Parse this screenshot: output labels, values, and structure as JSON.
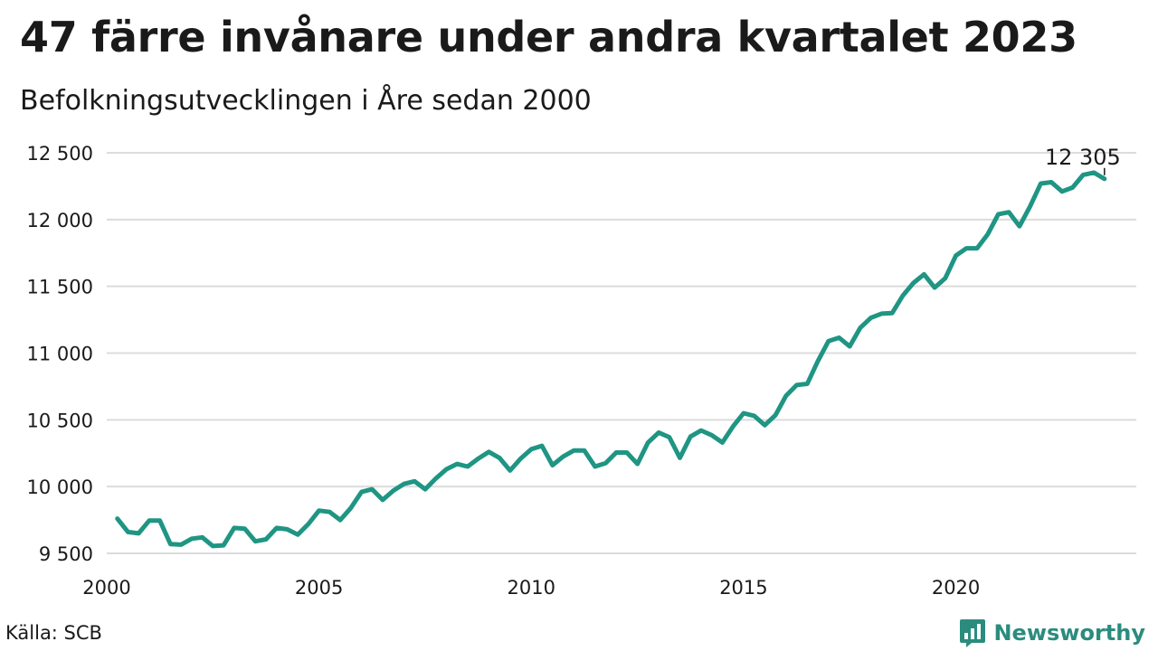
{
  "title": "47 färre invånare under andra kvartalet 2023",
  "subtitle": "Befolkningsutvecklingen i Åre sedan 2000",
  "source": "Källa: SCB",
  "brand": {
    "name": "Newsworthy",
    "color": "#2b8c7e"
  },
  "chart_data": {
    "type": "line",
    "line_color": "#1f9583",
    "grid": true,
    "ylim": [
      9500,
      12500
    ],
    "yticks": [
      9500,
      10000,
      10500,
      11000,
      11500,
      12000,
      12500
    ],
    "ytick_labels": [
      "9 500",
      "10 000",
      "10 500",
      "11 000",
      "11 500",
      "12 000",
      "12 500"
    ],
    "xticks": [
      2000,
      2005,
      2010,
      2015,
      2020
    ],
    "xtick_labels": [
      "2000",
      "2005",
      "2010",
      "2015",
      "2020"
    ],
    "xlim": [
      2000,
      2024.25
    ],
    "end_label": "12 305",
    "series": [
      {
        "values": [
          [
            2000.25,
            9760
          ],
          [
            2000.5,
            9660
          ],
          [
            2000.75,
            9650
          ],
          [
            2001,
            9745
          ],
          [
            2001.25,
            9745
          ],
          [
            2001.5,
            9570
          ],
          [
            2001.75,
            9565
          ],
          [
            2002,
            9610
          ],
          [
            2002.25,
            9620
          ],
          [
            2002.5,
            9555
          ],
          [
            2002.75,
            9560
          ],
          [
            2003,
            9690
          ],
          [
            2003.25,
            9685
          ],
          [
            2003.5,
            9590
          ],
          [
            2003.75,
            9605
          ],
          [
            2004,
            9690
          ],
          [
            2004.25,
            9680
          ],
          [
            2004.5,
            9640
          ],
          [
            2004.75,
            9720
          ],
          [
            2005,
            9820
          ],
          [
            2005.25,
            9810
          ],
          [
            2005.5,
            9750
          ],
          [
            2005.75,
            9840
          ],
          [
            2006,
            9960
          ],
          [
            2006.25,
            9980
          ],
          [
            2006.5,
            9900
          ],
          [
            2006.75,
            9970
          ],
          [
            2007,
            10020
          ],
          [
            2007.25,
            10040
          ],
          [
            2007.5,
            9980
          ],
          [
            2007.75,
            10060
          ],
          [
            2008,
            10130
          ],
          [
            2008.25,
            10170
          ],
          [
            2008.5,
            10150
          ],
          [
            2008.75,
            10210
          ],
          [
            2009,
            10260
          ],
          [
            2009.25,
            10215
          ],
          [
            2009.5,
            10120
          ],
          [
            2009.75,
            10210
          ],
          [
            2010,
            10280
          ],
          [
            2010.25,
            10305
          ],
          [
            2010.5,
            10160
          ],
          [
            2010.75,
            10225
          ],
          [
            2011,
            10270
          ],
          [
            2011.25,
            10270
          ],
          [
            2011.5,
            10150
          ],
          [
            2011.75,
            10175
          ],
          [
            2012,
            10255
          ],
          [
            2012.25,
            10255
          ],
          [
            2012.5,
            10170
          ],
          [
            2012.75,
            10330
          ],
          [
            2013,
            10405
          ],
          [
            2013.25,
            10370
          ],
          [
            2013.5,
            10215
          ],
          [
            2013.75,
            10375
          ],
          [
            2014,
            10420
          ],
          [
            2014.25,
            10385
          ],
          [
            2014.5,
            10330
          ],
          [
            2014.75,
            10450
          ],
          [
            2015,
            10550
          ],
          [
            2015.25,
            10530
          ],
          [
            2015.5,
            10460
          ],
          [
            2015.75,
            10535
          ],
          [
            2016,
            10680
          ],
          [
            2016.25,
            10760
          ],
          [
            2016.5,
            10770
          ],
          [
            2016.75,
            10940
          ],
          [
            2017,
            11090
          ],
          [
            2017.25,
            11115
          ],
          [
            2017.5,
            11050
          ],
          [
            2017.75,
            11190
          ],
          [
            2018,
            11265
          ],
          [
            2018.25,
            11295
          ],
          [
            2018.5,
            11300
          ],
          [
            2018.75,
            11430
          ],
          [
            2019,
            11525
          ],
          [
            2019.25,
            11590
          ],
          [
            2019.5,
            11490
          ],
          [
            2019.75,
            11560
          ],
          [
            2020,
            11730
          ],
          [
            2020.25,
            11785
          ],
          [
            2020.5,
            11785
          ],
          [
            2020.75,
            11890
          ],
          [
            2021,
            12040
          ],
          [
            2021.25,
            12055
          ],
          [
            2021.5,
            11950
          ],
          [
            2021.75,
            12100
          ],
          [
            2022,
            12270
          ],
          [
            2022.25,
            12280
          ],
          [
            2022.5,
            12210
          ],
          [
            2022.75,
            12240
          ],
          [
            2023,
            12335
          ],
          [
            2023.25,
            12352
          ],
          [
            2023.5,
            12305
          ]
        ]
      }
    ]
  }
}
